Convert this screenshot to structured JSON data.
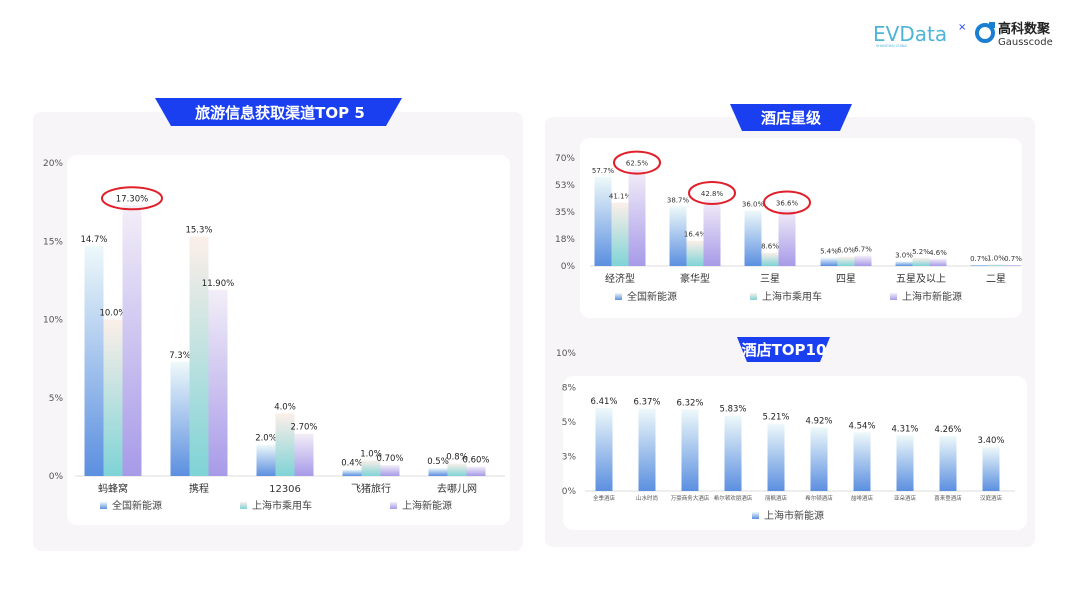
{
  "logos": {
    "evdata": "EVData",
    "evdata_sub": "SHANGHAI CHINA",
    "gauss_cn": "高科数聚",
    "gauss_en": "Gausscode"
  },
  "colors": {
    "banner": "#1a3ff0",
    "annotation": "#e0202a",
    "national_ev": "#5b8fe0",
    "shanghai_passenger": "#7fd3d6",
    "shanghai_ev": "#a79ae8"
  },
  "chart_data": [
    {
      "type": "bar",
      "title": "旅游信息获取渠道TOP 5",
      "categories": [
        "蚂蜂窝",
        "携程",
        "12306",
        "飞猪旅行",
        "去哪儿网"
      ],
      "series": [
        {
          "name": "全国新能源",
          "values": [
            14.7,
            7.3,
            2.0,
            0.4,
            0.5
          ],
          "labels": [
            "14.7%",
            "7.3%",
            "2.0%",
            "0.4%",
            "0.5%"
          ]
        },
        {
          "name": "上海市乘用车",
          "values": [
            10.0,
            15.3,
            4.0,
            1.0,
            0.8
          ],
          "labels": [
            "10.0%",
            "15.3%",
            "4.0%",
            "1.0%",
            "0.8%"
          ]
        },
        {
          "name": "上海新能源",
          "values": [
            17.3,
            11.9,
            2.7,
            0.7,
            0.6
          ],
          "labels": [
            "17.30%",
            "11.90%",
            "2.70%",
            "0.70%",
            "0.60%"
          ]
        }
      ],
      "yticks": [
        "0%",
        "5%",
        "10%",
        "15%",
        "20%"
      ],
      "ylim": [
        0,
        20
      ],
      "highlighted": [
        "17.30%"
      ],
      "legend": "bottom"
    },
    {
      "type": "bar",
      "title": "酒店星级",
      "categories": [
        "经济型",
        "豪华型",
        "三星",
        "四星",
        "五星及以上",
        "二星"
      ],
      "series": [
        {
          "name": "全国新能源",
          "values": [
            57.7,
            38.7,
            36.0,
            5.4,
            3.0,
            0.7
          ],
          "labels": [
            "57.7%",
            "38.7%",
            "36.0%",
            "5.4%",
            "3.0%",
            "0.7%"
          ]
        },
        {
          "name": "上海市乘用车",
          "values": [
            41.1,
            16.4,
            8.6,
            6.0,
            5.2,
            1.0
          ],
          "labels": [
            "41.1%",
            "16.4%",
            "8.6%",
            "6.0%",
            "5.2%",
            "1.0%"
          ]
        },
        {
          "name": "上海市新能源",
          "values": [
            62.5,
            42.8,
            36.6,
            6.7,
            4.6,
            0.7
          ],
          "labels": [
            "62.5%",
            "42.8%",
            "36.6%",
            "6.7%",
            "4.6%",
            "0.7%"
          ]
        }
      ],
      "yticks": [
        "0%",
        "18%",
        "35%",
        "53%",
        "70%"
      ],
      "ylim": [
        0,
        70
      ],
      "highlighted": [
        "62.5%",
        "42.8%",
        "36.6%"
      ],
      "legend": "bottom"
    },
    {
      "type": "bar",
      "title": "酒店TOP10",
      "categories": [
        "全季酒店",
        "山水时尚",
        "万豪商务大酒店",
        "希尔顿欢朋酒店",
        "丽枫酒店",
        "希尔顿酒店",
        "喆啡酒店",
        "亚朵酒店",
        "喜来登酒店",
        "汉庭酒店"
      ],
      "series": [
        {
          "name": "上海市新能源",
          "values": [
            6.41,
            6.37,
            6.32,
            5.83,
            5.21,
            4.92,
            4.54,
            4.31,
            4.26,
            3.4
          ],
          "labels": [
            "6.41%",
            "6.37%",
            "6.32%",
            "5.83%",
            "5.21%",
            "4.92%",
            "4.54%",
            "4.31%",
            "4.26%",
            "3.40%"
          ]
        }
      ],
      "yticks": [
        "0%",
        "3%",
        "5%",
        "8%",
        "10%"
      ],
      "ylim": [
        0,
        10.67
      ],
      "legend": "bottom"
    }
  ]
}
